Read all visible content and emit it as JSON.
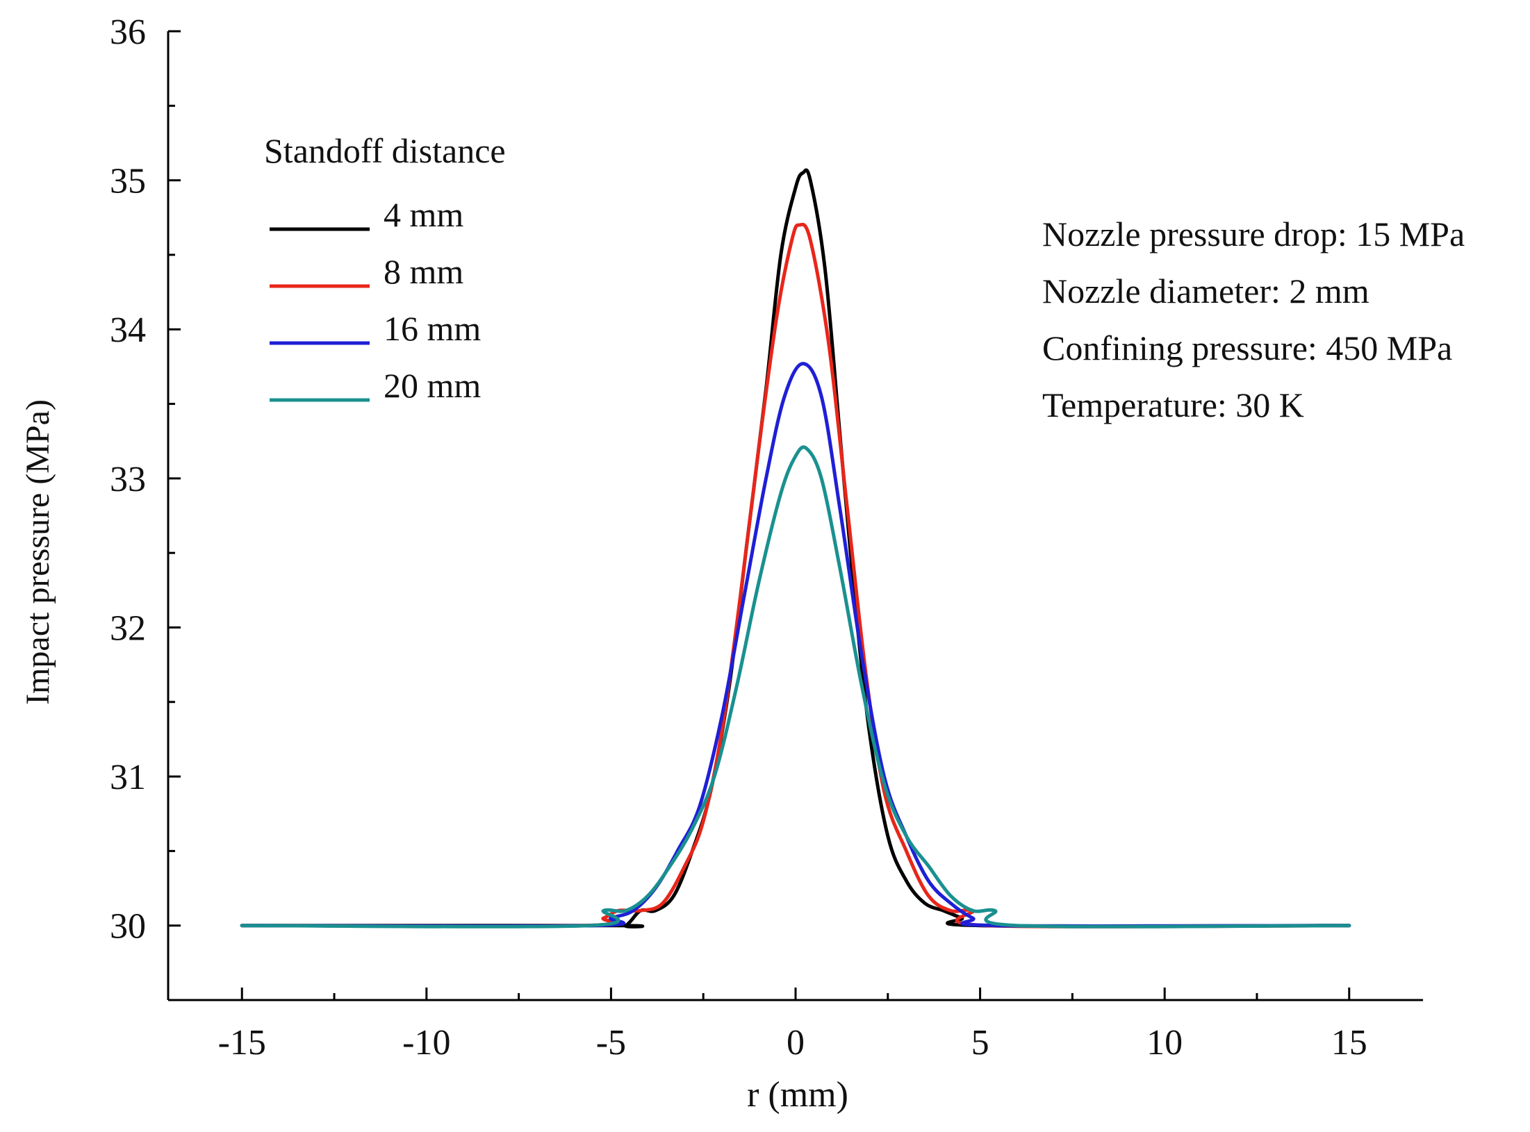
{
  "chart_data": {
    "type": "line",
    "title": "",
    "xlabel": "r (mm)",
    "ylabel": "Impact pressure (MPa)",
    "xlim": [
      -17,
      17
    ],
    "ylim": [
      29.5,
      36
    ],
    "xticks": [
      -15,
      -10,
      -5,
      0,
      5,
      10,
      15
    ],
    "xtick_labels": [
      "-15",
      "-10",
      "-5",
      "0",
      "5",
      "10",
      "15"
    ],
    "yticks": [
      30,
      31,
      32,
      33,
      34,
      35,
      36
    ],
    "ytick_labels": [
      "30",
      "31",
      "32",
      "33",
      "34",
      "35",
      "36"
    ],
    "grid": false,
    "legend": {
      "title": "Standoff distance",
      "placement": "top-left"
    },
    "series": [
      {
        "name": "4 mm",
        "color": "#000000",
        "points": [
          [
            -15,
            30
          ],
          [
            -5,
            30
          ],
          [
            -4.6,
            30.0
          ],
          [
            -4.2,
            30.1
          ],
          [
            -3.8,
            30.1
          ],
          [
            -3.3,
            30.2
          ],
          [
            -2.8,
            30.5
          ],
          [
            -2.3,
            30.9
          ],
          [
            -1.8,
            31.6
          ],
          [
            -1.3,
            32.6
          ],
          [
            -0.8,
            33.6
          ],
          [
            -0.4,
            34.5
          ],
          [
            0,
            34.95
          ],
          [
            0.2,
            35.05
          ],
          [
            0.4,
            35.0
          ],
          [
            0.8,
            34.4
          ],
          [
            1.2,
            33.3
          ],
          [
            1.6,
            32.2
          ],
          [
            2.0,
            31.3
          ],
          [
            2.5,
            30.6
          ],
          [
            3.0,
            30.3
          ],
          [
            3.5,
            30.15
          ],
          [
            4.0,
            30.1
          ],
          [
            4.5,
            30.05
          ],
          [
            5.0,
            30
          ],
          [
            15,
            30
          ]
        ]
      },
      {
        "name": "8 mm",
        "color": "#e8261a",
        "points": [
          [
            -15,
            30
          ],
          [
            -5.8,
            30
          ],
          [
            -5.2,
            30.05
          ],
          [
            -4.8,
            30.1
          ],
          [
            -4.2,
            30.1
          ],
          [
            -3.6,
            30.15
          ],
          [
            -3.0,
            30.4
          ],
          [
            -2.5,
            30.7
          ],
          [
            -2.0,
            31.3
          ],
          [
            -1.5,
            32.2
          ],
          [
            -1.0,
            33.2
          ],
          [
            -0.5,
            34.1
          ],
          [
            -0.1,
            34.6
          ],
          [
            0.1,
            34.7
          ],
          [
            0.4,
            34.6
          ],
          [
            0.9,
            33.9
          ],
          [
            1.4,
            32.8
          ],
          [
            1.9,
            31.7
          ],
          [
            2.4,
            30.9
          ],
          [
            3.0,
            30.5
          ],
          [
            3.6,
            30.2
          ],
          [
            4.2,
            30.1
          ],
          [
            4.8,
            30.1
          ],
          [
            5.2,
            30.0
          ],
          [
            15,
            30
          ]
        ]
      },
      {
        "name": "16 mm",
        "color": "#1f1fd6",
        "points": [
          [
            -15,
            30
          ],
          [
            -5.5,
            30
          ],
          [
            -5.0,
            30.05
          ],
          [
            -4.4,
            30.1
          ],
          [
            -3.8,
            30.25
          ],
          [
            -3.2,
            30.5
          ],
          [
            -2.6,
            30.8
          ],
          [
            -2.0,
            31.4
          ],
          [
            -1.4,
            32.2
          ],
          [
            -0.8,
            33.0
          ],
          [
            -0.3,
            33.55
          ],
          [
            0.2,
            33.77
          ],
          [
            0.7,
            33.55
          ],
          [
            1.2,
            32.8
          ],
          [
            1.8,
            31.8
          ],
          [
            2.4,
            31.0
          ],
          [
            3.0,
            30.6
          ],
          [
            3.6,
            30.3
          ],
          [
            4.2,
            30.15
          ],
          [
            4.8,
            30.05
          ],
          [
            5.4,
            30.0
          ],
          [
            15,
            30
          ]
        ]
      },
      {
        "name": "20 mm",
        "color": "#1a9090",
        "points": [
          [
            -15,
            30
          ],
          [
            -5.6,
            30
          ],
          [
            -5.2,
            30.1
          ],
          [
            -4.6,
            30.1
          ],
          [
            -4.0,
            30.2
          ],
          [
            -3.4,
            30.4
          ],
          [
            -2.8,
            30.65
          ],
          [
            -2.2,
            31.0
          ],
          [
            -1.6,
            31.6
          ],
          [
            -1.0,
            32.3
          ],
          [
            -0.4,
            32.9
          ],
          [
            0.0,
            33.15
          ],
          [
            0.3,
            33.2
          ],
          [
            0.7,
            33.0
          ],
          [
            1.2,
            32.4
          ],
          [
            1.8,
            31.6
          ],
          [
            2.4,
            30.95
          ],
          [
            3.0,
            30.6
          ],
          [
            3.6,
            30.4
          ],
          [
            4.2,
            30.2
          ],
          [
            4.8,
            30.1
          ],
          [
            5.4,
            30.1
          ],
          [
            6.0,
            30.0
          ],
          [
            15,
            30
          ]
        ]
      }
    ],
    "annotations": [
      "Nozzle pressure drop: 15 MPa",
      "Nozzle diameter: 2 mm",
      "Confining pressure: 450 MPa",
      "Temperature: 30 K"
    ]
  }
}
